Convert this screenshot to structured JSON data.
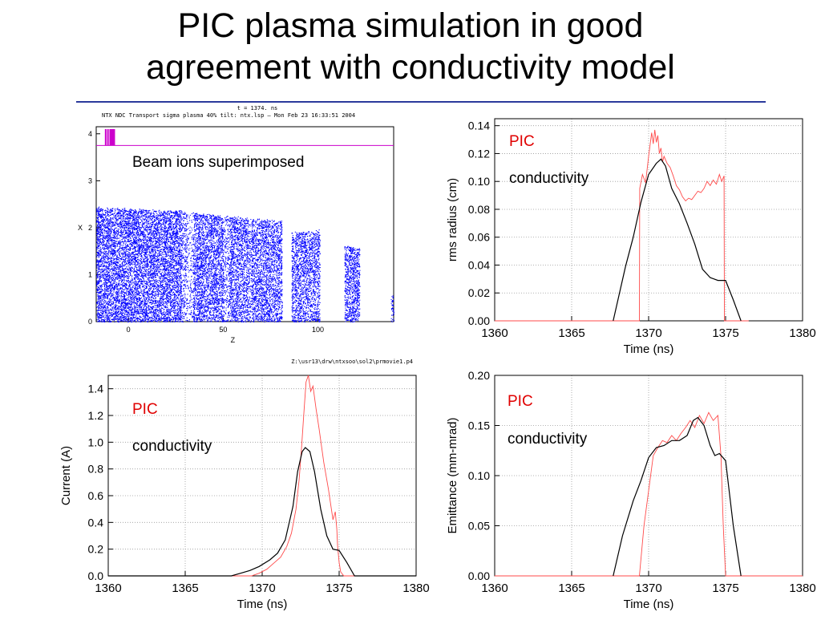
{
  "title": {
    "line1": "PIC plasma simulation in good",
    "line2": "agreement with conductivity model",
    "rule_color": "#2b3a9c"
  },
  "scatter_header": {
    "line1": "t = 1374. ns",
    "line2": "NTX NDC Transport sigma plasma 40% tilt: ntx.lsp — Mon Feb 23 16:33:51 2004",
    "footer": "Z:\\usr13\\drw\\ntxsoo\\sol2\\prmovie1.p4",
    "annotation": "Beam ions superimposed"
  },
  "colors": {
    "pic": "#ff4a4a",
    "conductivity": "#000000",
    "beam": "#0000ff",
    "marker": "#cc00cc",
    "grid": "#9a9a9a"
  },
  "chart_data": [
    {
      "id": "beam",
      "type": "scatter",
      "xlabel": "Z",
      "ylabel": "X",
      "xlim": [
        -17,
        140
      ],
      "ylim": [
        0,
        4.15
      ],
      "xticks": [
        "0",
        "50",
        "100"
      ],
      "xtick_values": [
        0,
        50,
        100
      ],
      "yticks": [
        "0",
        "1",
        "2",
        "3",
        "4"
      ],
      "ytick_values": [
        0,
        1,
        2,
        3,
        4
      ],
      "segments": [
        {
          "x0": -17,
          "x1": 28,
          "top0": 2.43,
          "top1": 2.35,
          "density": 1.0
        },
        {
          "x0": 28,
          "x1": 31,
          "top0": 2.35,
          "top1": 2.33,
          "density": 0.5
        },
        {
          "x0": 31,
          "x1": 34,
          "top0": 2.33,
          "top1": 2.32,
          "density": 0.25
        },
        {
          "x0": 34,
          "x1": 50,
          "top0": 2.32,
          "top1": 2.25,
          "density": 0.9
        },
        {
          "x0": 50,
          "x1": 53,
          "top0": 2.25,
          "top1": 2.24,
          "density": 0.45
        },
        {
          "x0": 53,
          "x1": 63,
          "top0": 2.24,
          "top1": 2.2,
          "density": 0.85
        },
        {
          "x0": 63,
          "x1": 65,
          "top0": 2.2,
          "top1": 2.2,
          "density": 0.5
        },
        {
          "x0": 65,
          "x1": 81,
          "top0": 2.2,
          "top1": 2.13,
          "density": 0.85
        },
        {
          "x0": 86,
          "x1": 101,
          "top0": 1.9,
          "top1": 1.95,
          "density": 0.8
        },
        {
          "x0": 114,
          "x1": 122,
          "top0": 1.63,
          "top1": 1.55,
          "density": 0.95
        },
        {
          "x0": 138.5,
          "x1": 140,
          "top0": 0.55,
          "top1": 0.55,
          "density": 0.7
        }
      ],
      "markers": {
        "x": [
          -12.0,
          -10.8,
          -9.6,
          -8.8,
          -8.2,
          -7.5
        ],
        "y": 4.1
      },
      "hline": 3.75
    },
    {
      "id": "rms",
      "type": "line",
      "xlabel": "Time (ns)",
      "ylabel": "rms radius (cm)",
      "xlim": [
        1360,
        1380
      ],
      "ylim": [
        0,
        0.145
      ],
      "xticks": [
        "1360",
        "1365",
        "1370",
        "1375",
        "1380"
      ],
      "xtick_values": [
        1360,
        1365,
        1370,
        1375,
        1380
      ],
      "yticks": [
        "0.00",
        "0.02",
        "0.04",
        "0.06",
        "0.08",
        "0.10",
        "0.12",
        "0.14"
      ],
      "ytick_values": [
        0,
        0.02,
        0.04,
        0.06,
        0.08,
        0.1,
        0.12,
        0.14
      ],
      "series": [
        {
          "name": "PIC",
          "x": [
            1360,
            1369.4,
            1369.42,
            1369.6,
            1369.8,
            1370.0,
            1370.2,
            1370.3,
            1370.4,
            1370.5,
            1370.6,
            1370.7,
            1370.8,
            1370.9,
            1371.0,
            1371.2,
            1371.4,
            1371.6,
            1371.8,
            1372.0,
            1372.2,
            1372.4,
            1372.6,
            1372.8,
            1373.0,
            1373.2,
            1373.4,
            1373.6,
            1373.8,
            1374.0,
            1374.2,
            1374.4,
            1374.6,
            1374.75,
            1374.9,
            1374.92,
            1376.5
          ],
          "y": [
            0,
            0,
            0.095,
            0.105,
            0.099,
            0.118,
            0.135,
            0.127,
            0.137,
            0.128,
            0.133,
            0.12,
            0.124,
            0.114,
            0.118,
            0.113,
            0.11,
            0.104,
            0.097,
            0.094,
            0.089,
            0.086,
            0.088,
            0.087,
            0.09,
            0.093,
            0.092,
            0.095,
            0.1,
            0.097,
            0.101,
            0.098,
            0.105,
            0.1,
            0.104,
            0,
            0
          ]
        },
        {
          "name": "conductivity",
          "x": [
            1367.7,
            1368.5,
            1369.0,
            1369.5,
            1370.0,
            1370.5,
            1370.8,
            1371.1,
            1371.5,
            1372.0,
            1372.5,
            1373.0,
            1373.5,
            1374.0,
            1374.5,
            1375.0,
            1375.5,
            1376.0
          ],
          "y": [
            0,
            0.039,
            0.06,
            0.085,
            0.105,
            0.113,
            0.116,
            0.111,
            0.095,
            0.084,
            0.07,
            0.055,
            0.037,
            0.031,
            0.029,
            0.029,
            0.015,
            0
          ]
        }
      ],
      "labels": [
        "PIC",
        "conductivity"
      ]
    },
    {
      "id": "current",
      "type": "line",
      "xlabel": "Time (ns)",
      "ylabel": "Current (A)",
      "xlim": [
        1360,
        1380
      ],
      "ylim": [
        0,
        1.5
      ],
      "xticks": [
        "1360",
        "1365",
        "1370",
        "1375",
        "1380"
      ],
      "xtick_values": [
        1360,
        1365,
        1370,
        1375,
        1380
      ],
      "yticks": [
        "0.0",
        "0.2",
        "0.4",
        "0.6",
        "0.8",
        "1.0",
        "1.2",
        "1.4"
      ],
      "ytick_values": [
        0,
        0.2,
        0.4,
        0.6,
        0.8,
        1.0,
        1.2,
        1.4
      ],
      "series": [
        {
          "name": "PIC",
          "x": [
            1360,
            1369.3,
            1369.8,
            1370.3,
            1370.8,
            1371.2,
            1371.6,
            1371.9,
            1372.2,
            1372.4,
            1372.55,
            1372.7,
            1372.85,
            1373.0,
            1373.15,
            1373.3,
            1373.5,
            1373.7,
            1374.0,
            1374.3,
            1374.6,
            1374.75,
            1374.85,
            1374.9,
            1375.0,
            1375.1,
            1375.3,
            1380
          ],
          "y": [
            0,
            0,
            0.02,
            0.05,
            0.1,
            0.14,
            0.22,
            0.32,
            0.5,
            0.72,
            0.95,
            1.2,
            1.45,
            1.5,
            1.38,
            1.42,
            1.25,
            1.1,
            0.85,
            0.65,
            0.42,
            0.48,
            0.35,
            0.22,
            0.1,
            0.03,
            0,
            0
          ]
        },
        {
          "name": "conductivity",
          "x": [
            1360,
            1368.0,
            1368.6,
            1369.2,
            1369.8,
            1370.5,
            1371.0,
            1371.5,
            1372.0,
            1372.3,
            1372.6,
            1372.8,
            1373.1,
            1373.4,
            1373.8,
            1374.2,
            1374.6,
            1375.0,
            1375.5,
            1376.0,
            1380
          ],
          "y": [
            0,
            0,
            0.02,
            0.04,
            0.07,
            0.12,
            0.17,
            0.27,
            0.52,
            0.78,
            0.93,
            0.96,
            0.93,
            0.78,
            0.5,
            0.3,
            0.2,
            0.19,
            0.1,
            0,
            0
          ]
        }
      ],
      "labels": [
        "PIC",
        "conductivity"
      ]
    },
    {
      "id": "emittance",
      "type": "line",
      "xlabel": "Time (ns)",
      "ylabel": "Emittance (mm-mrad)",
      "xlim": [
        1360,
        1380
      ],
      "ylim": [
        0,
        0.2
      ],
      "xticks": [
        "1360",
        "1365",
        "1370",
        "1375",
        "1380"
      ],
      "xtick_values": [
        1360,
        1365,
        1370,
        1375,
        1380
      ],
      "yticks": [
        "0.00",
        "0.05",
        "0.10",
        "0.15",
        "0.20"
      ],
      "ytick_values": [
        0,
        0.05,
        0.1,
        0.15,
        0.2
      ],
      "series": [
        {
          "name": "PIC",
          "x": [
            1360,
            1369.4,
            1369.7,
            1370.0,
            1370.3,
            1370.6,
            1370.9,
            1371.2,
            1371.5,
            1371.8,
            1372.1,
            1372.4,
            1372.7,
            1373.0,
            1373.3,
            1373.6,
            1373.9,
            1374.2,
            1374.5,
            1374.7,
            1374.85,
            1375.0,
            1380
          ],
          "y": [
            0,
            0,
            0.05,
            0.085,
            0.12,
            0.128,
            0.135,
            0.133,
            0.14,
            0.135,
            0.142,
            0.148,
            0.155,
            0.148,
            0.16,
            0.152,
            0.163,
            0.155,
            0.16,
            0.12,
            0.05,
            0,
            0
          ]
        },
        {
          "name": "conductivity",
          "x": [
            1367.7,
            1368.3,
            1369.0,
            1369.5,
            1370.0,
            1370.5,
            1371.0,
            1371.5,
            1372.0,
            1372.5,
            1372.9,
            1373.2,
            1373.6,
            1374.0,
            1374.3,
            1374.6,
            1375.0,
            1375.5,
            1376.0
          ],
          "y": [
            0,
            0.04,
            0.075,
            0.095,
            0.118,
            0.128,
            0.13,
            0.135,
            0.135,
            0.14,
            0.155,
            0.158,
            0.15,
            0.13,
            0.12,
            0.122,
            0.115,
            0.05,
            0
          ]
        }
      ],
      "labels": [
        "PIC",
        "conductivity"
      ]
    }
  ]
}
